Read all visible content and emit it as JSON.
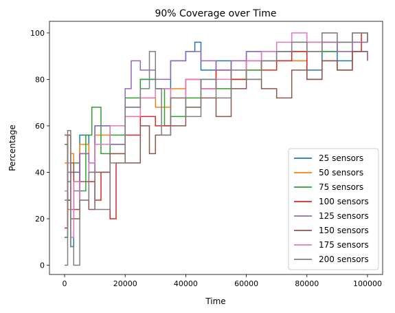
{
  "chart_data": {
    "type": "line",
    "title": "90% Coverage over Time",
    "xlabel": "Time",
    "ylabel": "Percentage",
    "xlim": [
      -5000,
      105000
    ],
    "ylim": [
      -4,
      105
    ],
    "xticks": [
      0,
      20000,
      40000,
      60000,
      80000,
      100000
    ],
    "yticks": [
      0,
      20,
      40,
      60,
      80,
      100
    ],
    "xtick_labels": [
      "0",
      "20000",
      "40000",
      "60000",
      "80000",
      "100000"
    ],
    "ytick_labels": [
      "0",
      "20",
      "40",
      "60",
      "80",
      "100"
    ],
    "grid": false,
    "legend_position": "lower-right",
    "series": [
      {
        "name": "25 sensors",
        "color": "#1f77b4",
        "x": [
          0,
          1000,
          2000,
          3000,
          5000,
          8000,
          10000,
          15000,
          20000,
          25000,
          30000,
          35000,
          40000,
          43000,
          45000,
          50000,
          55000,
          60000,
          70000,
          80000,
          85000,
          90000,
          95000,
          100000
        ],
        "y": [
          12,
          28,
          8,
          40,
          56,
          44,
          60,
          52,
          68,
          80,
          76,
          88,
          92,
          96,
          84,
          88,
          80,
          92,
          88,
          84,
          92,
          88,
          92,
          92
        ]
      },
      {
        "name": "50 sensors",
        "color": "#ff7f0e",
        "x": [
          0,
          1000,
          2000,
          3000,
          5000,
          8000,
          10000,
          15000,
          20000,
          25000,
          30000,
          35000,
          40000,
          45000,
          50000,
          55000,
          60000,
          65000,
          70000,
          75000,
          80000,
          85000,
          90000,
          95000,
          100000
        ],
        "y": [
          44,
          24,
          48,
          36,
          52,
          40,
          56,
          48,
          64,
          72,
          68,
          76,
          80,
          76,
          84,
          88,
          84,
          88,
          92,
          88,
          92,
          96,
          92,
          96,
          96
        ]
      },
      {
        "name": "75 sensors",
        "color": "#2ca02c",
        "x": [
          0,
          1000,
          2000,
          3000,
          5000,
          7000,
          9000,
          12000,
          15000,
          20000,
          25000,
          30000,
          33000,
          35000,
          40000,
          45000,
          50000,
          55000,
          60000,
          65000,
          70000,
          80000,
          85000,
          90000,
          95000,
          100000
        ],
        "y": [
          52,
          36,
          20,
          44,
          32,
          56,
          68,
          48,
          56,
          72,
          80,
          76,
          60,
          64,
          72,
          80,
          76,
          80,
          84,
          88,
          92,
          96,
          92,
          96,
          100,
          96
        ]
      },
      {
        "name": "100 sensors",
        "color": "#d62728",
        "x": [
          0,
          1000,
          2000,
          3000,
          5000,
          8000,
          10000,
          12000,
          15000,
          17000,
          20000,
          25000,
          30000,
          35000,
          40000,
          45000,
          50000,
          55000,
          60000,
          65000,
          70000,
          75000,
          80000,
          85000,
          90000,
          95000,
          98000,
          100000
        ],
        "y": [
          16,
          56,
          40,
          24,
          48,
          36,
          28,
          40,
          20,
          44,
          56,
          64,
          60,
          72,
          80,
          76,
          84,
          80,
          88,
          84,
          88,
          92,
          80,
          88,
          84,
          92,
          100,
          96
        ]
      },
      {
        "name": "125 sensors",
        "color": "#9467bd",
        "x": [
          0,
          1000,
          2000,
          3000,
          5000,
          8000,
          10000,
          15000,
          20000,
          22000,
          25000,
          30000,
          35000,
          40000,
          45000,
          50000,
          55000,
          60000,
          65000,
          70000,
          75000,
          80000,
          85000,
          90000,
          95000,
          100000
        ],
        "y": [
          28,
          40,
          24,
          32,
          48,
          40,
          60,
          52,
          76,
          88,
          84,
          80,
          88,
          92,
          88,
          84,
          88,
          92,
          88,
          92,
          96,
          92,
          96,
          92,
          96,
          96
        ]
      },
      {
        "name": "150 sensors",
        "color": "#8c564b",
        "x": [
          0,
          1000,
          2000,
          3000,
          5000,
          8000,
          10000,
          15000,
          20000,
          25000,
          28000,
          30000,
          35000,
          40000,
          45000,
          50000,
          55000,
          60000,
          65000,
          70000,
          75000,
          80000,
          85000,
          90000,
          95000,
          100000
        ],
        "y": [
          56,
          28,
          44,
          20,
          36,
          24,
          40,
          48,
          44,
          60,
          48,
          56,
          60,
          68,
          72,
          64,
          76,
          80,
          76,
          72,
          84,
          80,
          88,
          84,
          92,
          88
        ]
      },
      {
        "name": "175 sensors",
        "color": "#e377c2",
        "x": [
          0,
          1000,
          2000,
          3000,
          5000,
          8000,
          10000,
          15000,
          20000,
          25000,
          30000,
          35000,
          40000,
          45000,
          50000,
          55000,
          60000,
          65000,
          70000,
          75000,
          80000,
          85000,
          90000,
          95000,
          100000
        ],
        "y": [
          32,
          44,
          12,
          36,
          28,
          44,
          52,
          60,
          64,
          72,
          76,
          72,
          80,
          76,
          80,
          84,
          88,
          92,
          96,
          100,
          96,
          100,
          96,
          100,
          96
        ]
      },
      {
        "name": "200 sensors",
        "color": "#7f7f7f",
        "x": [
          0,
          1000,
          2000,
          3000,
          5000,
          8000,
          10000,
          15000,
          20000,
          25000,
          28000,
          30000,
          32000,
          35000,
          40000,
          45000,
          50000,
          55000,
          60000,
          65000,
          70000,
          75000,
          80000,
          85000,
          90000,
          95000,
          100000
        ],
        "y": [
          0,
          58,
          8,
          0,
          28,
          40,
          24,
          44,
          68,
          76,
          92,
          76,
          56,
          72,
          64,
          80,
          72,
          84,
          80,
          88,
          92,
          96,
          92,
          100,
          96,
          100,
          96
        ]
      }
    ]
  }
}
